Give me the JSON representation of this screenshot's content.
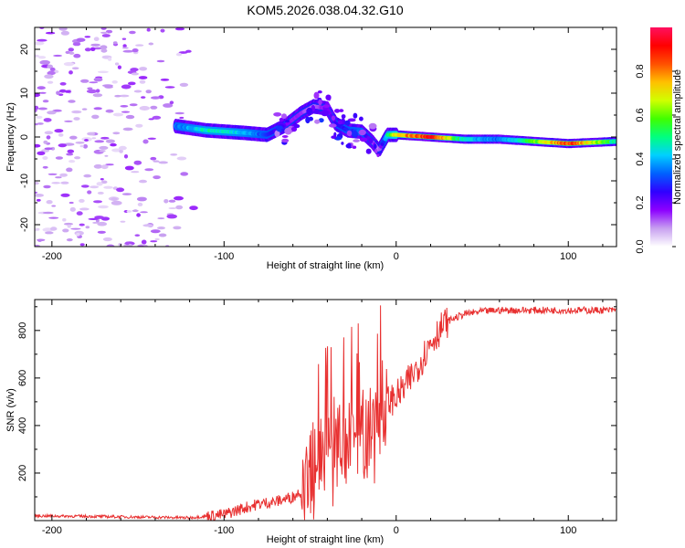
{
  "title": "KOM5.2026.038.04.32.G10",
  "chart_data": [
    {
      "type": "heatmap",
      "name": "spectrogram",
      "xlabel": "Height of straight line (km)",
      "ylabel": "Frequency (Hz)",
      "xlim": [
        -210,
        128
      ],
      "ylim": [
        -25,
        25
      ],
      "xticks": [
        -200,
        -100,
        0,
        100
      ],
      "yticks": [
        -20,
        -10,
        0,
        10,
        20
      ],
      "xtick_labels": [
        "-200",
        "-100",
        "0",
        "100"
      ],
      "ytick_labels": [
        "-20",
        "-10",
        "0",
        "10",
        "20"
      ],
      "ridge": {
        "x": [
          -128,
          -110,
          -90,
          -75,
          -65,
          -55,
          -48,
          -40,
          -35,
          -28,
          -20,
          -14,
          -10,
          -5,
          0,
          20,
          40,
          60,
          80,
          100,
          128
        ],
        "freq": [
          2.5,
          1.5,
          1.0,
          0.5,
          2.5,
          5.5,
          7.0,
          6.5,
          3.0,
          1.5,
          1.2,
          -1.0,
          -3.0,
          0.5,
          0.5,
          0.0,
          -0.5,
          -0.5,
          -1.0,
          -1.5,
          -1.0
        ],
        "amplitude": [
          0.35,
          0.5,
          0.45,
          0.3,
          0.2,
          0.15,
          0.1,
          0.2,
          0.25,
          0.3,
          0.35,
          0.15,
          0.1,
          0.5,
          0.75,
          0.95,
          0.45,
          0.35,
          0.6,
          0.9,
          0.5
        ]
      },
      "noise_region_x": [
        -210,
        -105
      ],
      "colorbar": {
        "label": "Normalized spectral amplitude",
        "range": [
          0,
          1
        ],
        "ticks": [
          0.0,
          0.2,
          0.4,
          0.6,
          0.8
        ],
        "tick_labels": [
          "0.0",
          "0.2",
          "0.4",
          "0.6",
          "0.8"
        ],
        "colors": [
          "#ffffff",
          "#c8a0f0",
          "#8c00ff",
          "#3000ff",
          "#0060ff",
          "#00d0ff",
          "#00ff80",
          "#40ff00",
          "#d0ff00",
          "#ffc000",
          "#ff5000",
          "#ff0000",
          "#ff1060"
        ]
      }
    },
    {
      "type": "line",
      "name": "snr",
      "xlabel": "Height of straight line (km)",
      "ylabel": "SNR (v/v)",
      "xlim": [
        -210,
        128
      ],
      "ylim": [
        0,
        930
      ],
      "xticks": [
        -200,
        -100,
        0,
        100
      ],
      "yticks": [
        200,
        400,
        600,
        800
      ],
      "xtick_labels": [
        "-200",
        "-100",
        "0",
        "100"
      ],
      "ytick_labels": [
        "200",
        "400",
        "600",
        "800"
      ],
      "color": "#e83030",
      "trend": {
        "x": [
          -210,
          -180,
          -150,
          -120,
          -100,
          -90,
          -80,
          -70,
          -60,
          -50,
          -45,
          -40,
          -35,
          -30,
          -25,
          -20,
          -15,
          -10,
          -5,
          0,
          5,
          10,
          15,
          20,
          25,
          30,
          40,
          50,
          60,
          80,
          100,
          128
        ],
        "y": [
          20,
          18,
          15,
          12,
          25,
          50,
          70,
          80,
          100,
          150,
          250,
          320,
          350,
          380,
          400,
          420,
          440,
          450,
          500,
          520,
          560,
          620,
          680,
          750,
          800,
          840,
          870,
          880,
          885,
          885,
          885,
          885
        ]
      }
    }
  ]
}
